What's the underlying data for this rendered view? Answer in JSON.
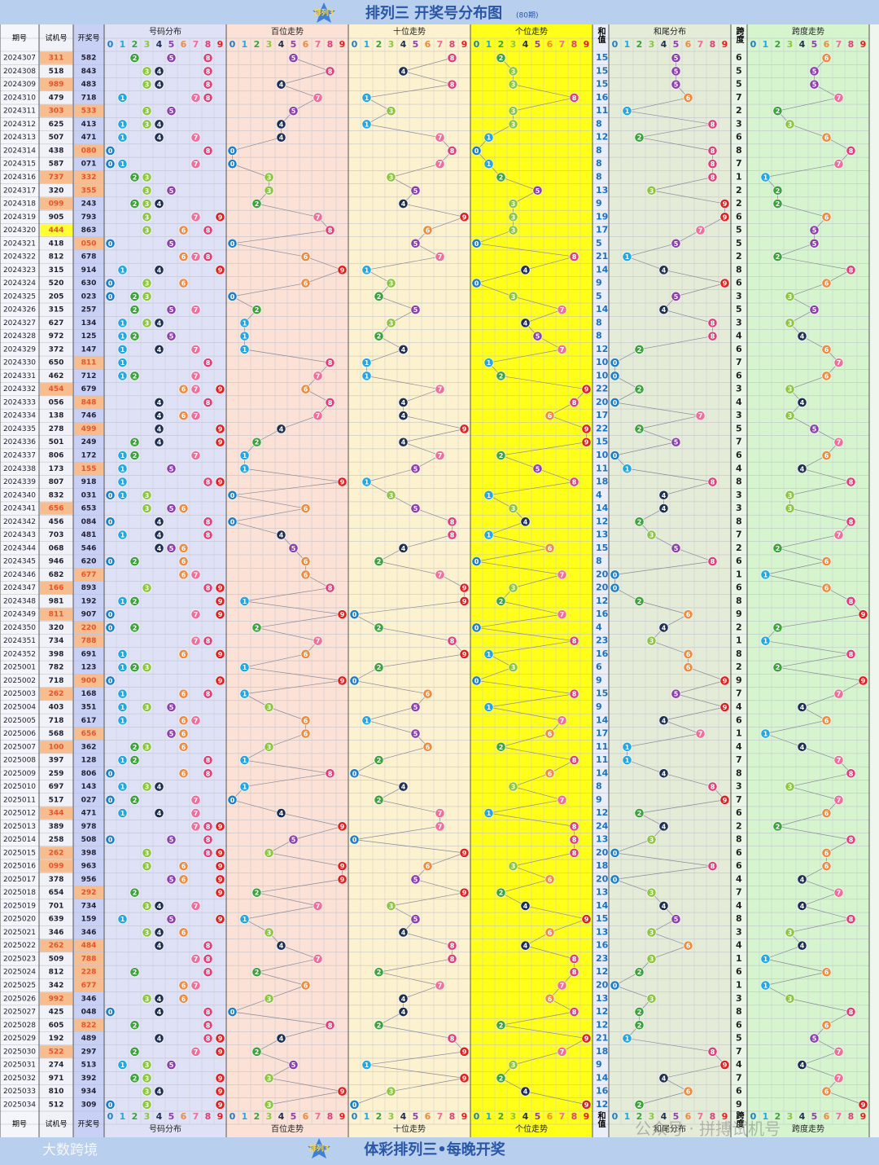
{
  "header": {
    "logo": "排列3",
    "title": "排列三 开奖号分布图",
    "subtitle": "(80期)"
  },
  "columns": {
    "period": "期号",
    "trial": "试机号",
    "draw": "开奖号",
    "dist": "号码分布",
    "hundreds": "百位走势",
    "tens": "十位走势",
    "units": "个位走势",
    "sum": "和值",
    "sum_tail": "和尾分布",
    "span": "跨度",
    "span_trend": "跨度走势"
  },
  "digits": [
    0,
    1,
    2,
    3,
    4,
    5,
    6,
    7,
    8,
    9
  ],
  "rows": [
    [
      "2024307",
      "311",
      "582",
      15,
      6
    ],
    [
      "2024308",
      "518",
      "843",
      15,
      5
    ],
    [
      "2024309",
      "989",
      "483",
      15,
      5
    ],
    [
      "2024310",
      "479",
      "718",
      16,
      7
    ],
    [
      "2024311",
      "303",
      "533",
      11,
      2
    ],
    [
      "2024312",
      "625",
      "413",
      8,
      3
    ],
    [
      "2024313",
      "507",
      "471",
      12,
      6
    ],
    [
      "2024314",
      "438",
      "080",
      8,
      8
    ],
    [
      "2024315",
      "587",
      "071",
      8,
      7
    ],
    [
      "2024316",
      "737",
      "332",
      8,
      1
    ],
    [
      "2024317",
      "320",
      "355",
      13,
      2
    ],
    [
      "2024318",
      "099",
      "243",
      9,
      2
    ],
    [
      "2024319",
      "905",
      "793",
      19,
      6
    ],
    [
      "2024320",
      "444",
      "863",
      17,
      5
    ],
    [
      "2024321",
      "418",
      "050",
      5,
      5
    ],
    [
      "2024322",
      "812",
      "678",
      21,
      2
    ],
    [
      "2024323",
      "315",
      "914",
      14,
      8
    ],
    [
      "2024324",
      "520",
      "630",
      9,
      6
    ],
    [
      "2024325",
      "205",
      "023",
      5,
      3
    ],
    [
      "2024326",
      "315",
      "257",
      14,
      5
    ],
    [
      "2024327",
      "627",
      "134",
      8,
      3
    ],
    [
      "2024328",
      "972",
      "125",
      8,
      4
    ],
    [
      "2024329",
      "372",
      "147",
      12,
      6
    ],
    [
      "2024330",
      "650",
      "811",
      10,
      7
    ],
    [
      "2024331",
      "462",
      "712",
      10,
      6
    ],
    [
      "2024332",
      "454",
      "679",
      22,
      3
    ],
    [
      "2024333",
      "056",
      "848",
      20,
      4
    ],
    [
      "2024334",
      "138",
      "746",
      17,
      3
    ],
    [
      "2024335",
      "278",
      "499",
      22,
      5
    ],
    [
      "2024336",
      "501",
      "249",
      15,
      7
    ],
    [
      "2024337",
      "806",
      "172",
      10,
      6
    ],
    [
      "2024338",
      "173",
      "155",
      11,
      4
    ],
    [
      "2024339",
      "807",
      "918",
      18,
      8
    ],
    [
      "2024340",
      "832",
      "031",
      4,
      3
    ],
    [
      "2024341",
      "656",
      "653",
      14,
      3
    ],
    [
      "2024342",
      "456",
      "084",
      12,
      8
    ],
    [
      "2024343",
      "703",
      "481",
      13,
      7
    ],
    [
      "2024344",
      "068",
      "546",
      15,
      2
    ],
    [
      "2024345",
      "946",
      "620",
      8,
      6
    ],
    [
      "2024346",
      "682",
      "677",
      20,
      1
    ],
    [
      "2024347",
      "166",
      "893",
      20,
      6
    ],
    [
      "2024348",
      "981",
      "192",
      12,
      8
    ],
    [
      "2024349",
      "811",
      "907",
      16,
      9
    ],
    [
      "2024350",
      "320",
      "220",
      4,
      2
    ],
    [
      "2024351",
      "734",
      "788",
      23,
      1
    ],
    [
      "2024352",
      "398",
      "691",
      16,
      8
    ],
    [
      "2025001",
      "782",
      "123",
      6,
      2
    ],
    [
      "2025002",
      "718",
      "900",
      9,
      9
    ],
    [
      "2025003",
      "262",
      "168",
      15,
      7
    ],
    [
      "2025004",
      "403",
      "351",
      9,
      4
    ],
    [
      "2025005",
      "718",
      "617",
      14,
      6
    ],
    [
      "2025006",
      "568",
      "656",
      17,
      1
    ],
    [
      "2025007",
      "100",
      "362",
      11,
      4
    ],
    [
      "2025008",
      "397",
      "128",
      11,
      7
    ],
    [
      "2025009",
      "259",
      "806",
      14,
      8
    ],
    [
      "2025010",
      "697",
      "143",
      8,
      3
    ],
    [
      "2025011",
      "517",
      "027",
      9,
      7
    ],
    [
      "2025012",
      "344",
      "471",
      12,
      6
    ],
    [
      "2025013",
      "389",
      "978",
      24,
      2
    ],
    [
      "2025014",
      "258",
      "508",
      13,
      8
    ],
    [
      "2025015",
      "262",
      "398",
      20,
      6
    ],
    [
      "2025016",
      "099",
      "963",
      18,
      6
    ],
    [
      "2025017",
      "378",
      "956",
      20,
      4
    ],
    [
      "2025018",
      "654",
      "292",
      13,
      7
    ],
    [
      "2025019",
      "701",
      "734",
      14,
      4
    ],
    [
      "2025020",
      "639",
      "159",
      15,
      8
    ],
    [
      "2025021",
      "346",
      "346",
      13,
      3
    ],
    [
      "2025022",
      "262",
      "484",
      16,
      4
    ],
    [
      "2025023",
      "509",
      "788",
      23,
      1
    ],
    [
      "2025024",
      "812",
      "228",
      12,
      6
    ],
    [
      "2025025",
      "342",
      "677",
      20,
      1
    ],
    [
      "2025026",
      "992",
      "346",
      13,
      3
    ],
    [
      "2025027",
      "425",
      "048",
      12,
      8
    ],
    [
      "2025028",
      "605",
      "822",
      12,
      6
    ],
    [
      "2025029",
      "192",
      "489",
      21,
      5
    ],
    [
      "2025030",
      "522",
      "297",
      18,
      7
    ],
    [
      "2025031",
      "274",
      "513",
      9,
      4
    ],
    [
      "2025032",
      "971",
      "392",
      14,
      7
    ],
    [
      "2025033",
      "810",
      "934",
      16,
      6
    ],
    [
      "2025034",
      "512",
      "309",
      12,
      9
    ]
  ],
  "footer": {
    "logo": "排列3",
    "slogan": "体彩排列三•每晚开奖",
    "brand": "大数跨境",
    "watermark": "公众号 · 拼搏试机号"
  }
}
